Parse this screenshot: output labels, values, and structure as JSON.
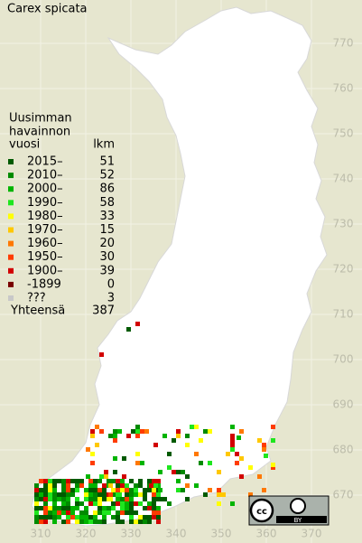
{
  "title": "Carex spicata",
  "legend": {
    "header": [
      "Uusimman",
      "havainnon",
      "vuosi"
    ],
    "count_header": "lkm",
    "entries": [
      {
        "label": "2015–",
        "color": "#005a00",
        "count": 51
      },
      {
        "label": "2010–",
        "color": "#008a00",
        "count": 52
      },
      {
        "label": "2000–",
        "color": "#00b400",
        "count": 86
      },
      {
        "label": "1990–",
        "color": "#1ee61e",
        "count": 58
      },
      {
        "label": "1980–",
        "color": "#ffff00",
        "count": 33
      },
      {
        "label": "1970–",
        "color": "#ffc800",
        "count": 15
      },
      {
        "label": "1960–",
        "color": "#ff7800",
        "count": 20
      },
      {
        "label": "1950–",
        "color": "#ff3c00",
        "count": 30
      },
      {
        "label": "1900–",
        "color": "#d20000",
        "count": 39
      },
      {
        "label": "-1899",
        "color": "#780000",
        "count": 0
      },
      {
        "label": "???",
        "color": "#c8c8c8",
        "count": 3
      }
    ],
    "total_label": "Yhteensä",
    "total": 387
  },
  "grid": {
    "northing": [
      770,
      760,
      750,
      740,
      730,
      720,
      710,
      700,
      690,
      680,
      670
    ],
    "easting": [
      310,
      320,
      330,
      340,
      350,
      360,
      370
    ]
  },
  "license": "BY"
}
